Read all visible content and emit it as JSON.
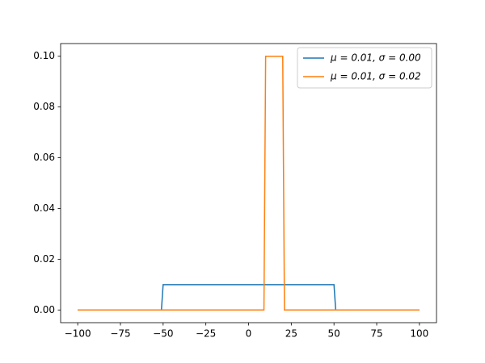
{
  "chart_data": {
    "type": "line",
    "x": [
      -100,
      -51,
      -50,
      9,
      10,
      20,
      21,
      50,
      51,
      100
    ],
    "series": [
      {
        "name": "μ = 0.01,  σ = 0.00",
        "color": "#1f77b4",
        "values": [
          0,
          0,
          0.01,
          0.01,
          0.01,
          0.01,
          0.01,
          0.01,
          0,
          0
        ]
      },
      {
        "name": "μ = 0.01,  σ = 0.02",
        "color": "#ff7f0e",
        "values": [
          0,
          0,
          0,
          0,
          0.1,
          0.1,
          0,
          0,
          0,
          0
        ]
      }
    ],
    "xlim": [
      -110,
      110
    ],
    "ylim": [
      -0.005,
      0.105
    ],
    "xticks": [
      {
        "value": -100,
        "label": "−100"
      },
      {
        "value": -75,
        "label": "−75"
      },
      {
        "value": -50,
        "label": "−50"
      },
      {
        "value": -25,
        "label": "−25"
      },
      0,
      25,
      50,
      75,
      100
    ],
    "yticks": [
      {
        "value": 0,
        "label": "0.00"
      },
      {
        "value": 0.02,
        "label": "0.02"
      },
      {
        "value": 0.04,
        "label": "0.04"
      },
      {
        "value": 0.06,
        "label": "0.06"
      },
      {
        "value": 0.08,
        "label": "0.08"
      },
      {
        "value": 0.1,
        "label": "0.10"
      }
    ],
    "legend": "upper right"
  }
}
